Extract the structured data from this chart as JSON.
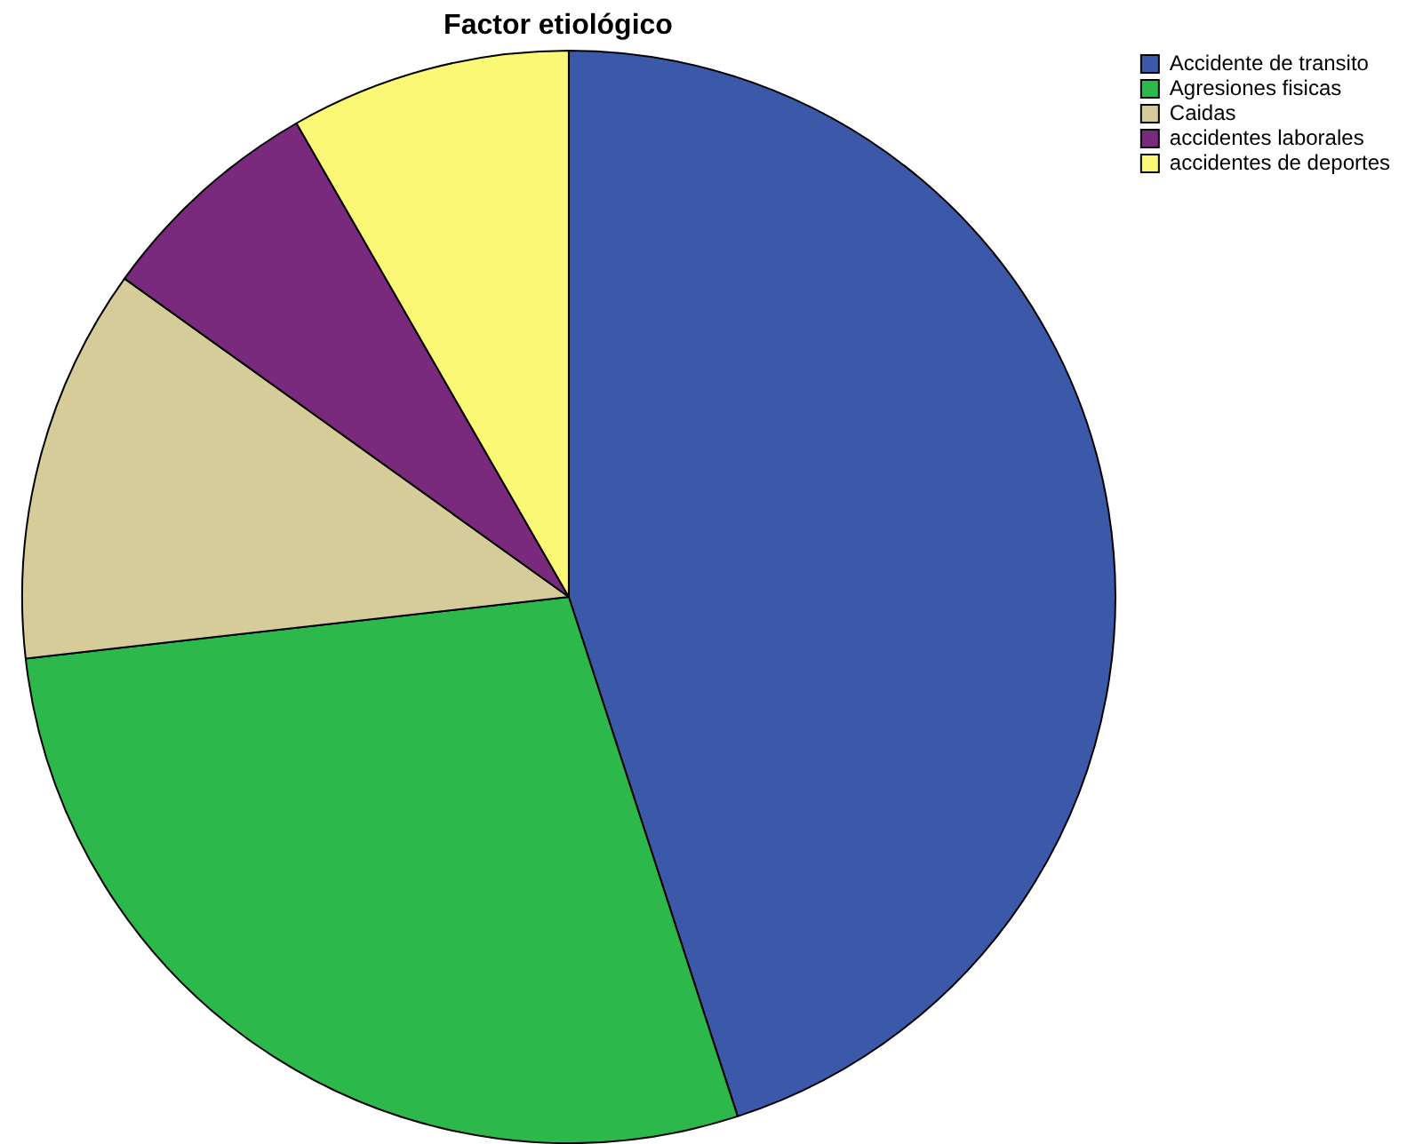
{
  "chart_data": {
    "type": "pie",
    "title": "Factor etiológico",
    "categories": [
      "Accidente de transito",
      "Agresiones fisicas",
      "Caidas",
      "accidentes laborales",
      "accidentes de deportes"
    ],
    "values": [
      45,
      28.2,
      11.7,
      6.8,
      8.3
    ],
    "colors": [
      "#3c58a8",
      "#2db84b",
      "#d5cc9a",
      "#7a2a7c",
      "#fbf876"
    ],
    "legend": "top right"
  }
}
